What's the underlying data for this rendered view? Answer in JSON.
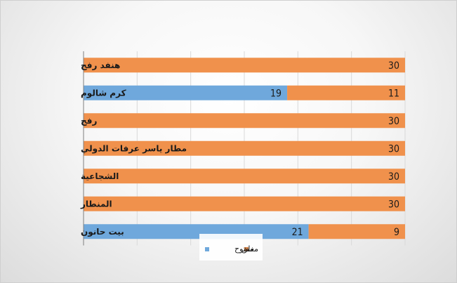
{
  "chart_data": {
    "type": "bar",
    "orientation": "horizontal",
    "stacked": true,
    "categories": [
      "هنفد رفح",
      "كرم شالوم",
      "رفح",
      "مطار ياسر عرفات الدولي",
      "الشجاعية",
      "المنطار",
      "بيت حانون"
    ],
    "series": [
      {
        "name": "مغلق",
        "color": "#f0914c",
        "values": [
          30,
          11,
          30,
          30,
          30,
          30,
          9
        ]
      },
      {
        "name": "مفتوح",
        "color": "#6fa8dc",
        "values": [
          0,
          19,
          0,
          0,
          0,
          0,
          21
        ]
      }
    ],
    "xlim": [
      0,
      30
    ],
    "grid": true,
    "legend": "bottom"
  }
}
